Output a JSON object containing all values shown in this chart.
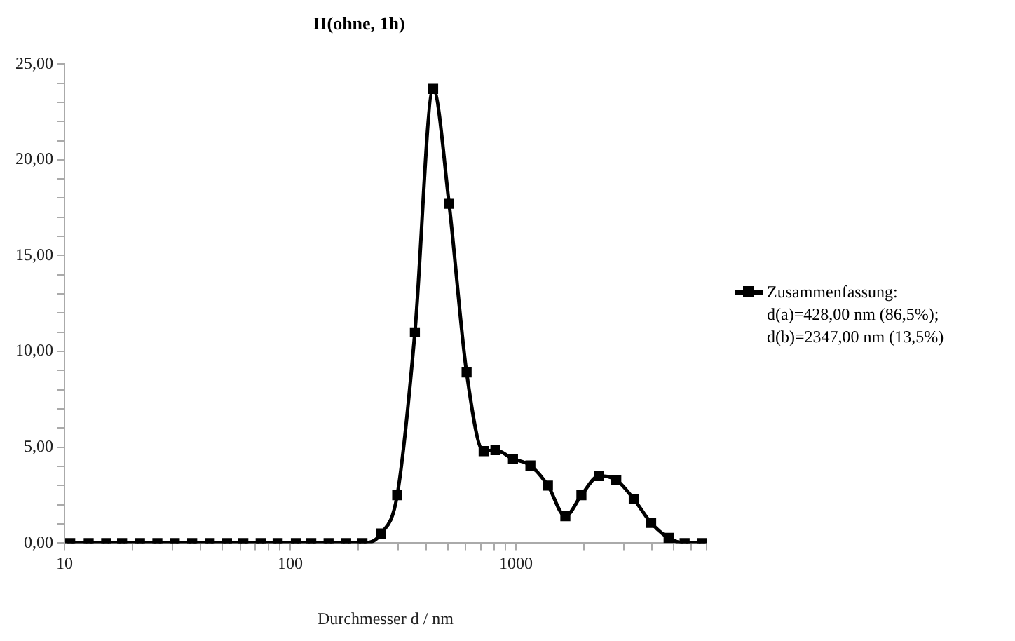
{
  "chart_data": {
    "type": "line",
    "title": "II(ohne, 1h)",
    "xlabel": "Durchmesser d / nm",
    "log": "x",
    "legend": "right",
    "marker": "square",
    "line_style": "solid",
    "grid": false,
    "x": [
      10.6,
      12.8,
      15.3,
      18,
      21.6,
      25.8,
      30.8,
      36.8,
      44,
      52.5,
      62,
      74,
      88,
      106,
      124,
      148,
      177,
      209,
      253,
      298,
      357,
      430,
      506,
      605,
      720,
      812,
      971,
      1160,
      1387,
      1657,
      1952,
      2333,
      2786,
      3330,
      3977,
      4752,
      5596,
      6688
    ],
    "series": [
      {
        "name": "Zusammenfassung:\nd(a)=428,00 nm (86,5%);\nd(b)=2347,00 nm (13,5%)",
        "color": "#000000",
        "values": [
          0,
          0,
          0,
          0,
          0,
          0,
          0,
          0,
          0,
          0,
          0,
          0,
          0,
          0,
          0,
          0,
          0,
          0,
          0.5,
          2.5,
          11,
          23.7,
          17.7,
          8.9,
          4.8,
          4.85,
          4.4,
          4.05,
          3.0,
          1.4,
          2.5,
          3.5,
          3.3,
          2.3,
          1.05,
          0.27,
          0,
          0
        ]
      }
    ],
    "xlim": [
      10,
      7000
    ],
    "xticks": [
      10,
      {
        "value": 20,
        "label": null
      },
      {
        "value": 30,
        "label": null
      },
      {
        "value": 40,
        "label": null
      },
      {
        "value": 50,
        "label": null
      },
      {
        "value": 60,
        "label": null
      },
      {
        "value": 70,
        "label": null
      },
      {
        "value": 80,
        "label": null
      },
      {
        "value": 90,
        "label": null
      },
      100,
      {
        "value": 200,
        "label": null
      },
      {
        "value": 300,
        "label": null
      },
      {
        "value": 400,
        "label": null
      },
      {
        "value": 500,
        "label": null
      },
      {
        "value": 600,
        "label": null
      },
      {
        "value": 700,
        "label": null
      },
      {
        "value": 800,
        "label": null
      },
      {
        "value": 900,
        "label": null
      },
      1000,
      {
        "value": 2000,
        "label": null
      },
      {
        "value": 3000,
        "label": null
      },
      {
        "value": 4000,
        "label": null
      },
      {
        "value": 5000,
        "label": null
      },
      {
        "value": 6000,
        "label": null
      },
      {
        "value": 7000,
        "label": null
      }
    ],
    "ylim": [
      0,
      25
    ],
    "yticks": [
      {
        "value": 0,
        "label": "0,00"
      },
      {
        "value": 1,
        "label": null
      },
      {
        "value": 2,
        "label": null
      },
      {
        "value": 3,
        "label": null
      },
      {
        "value": 4,
        "label": null
      },
      {
        "value": 5,
        "label": "5,00"
      },
      {
        "value": 6,
        "label": null
      },
      {
        "value": 7,
        "label": null
      },
      {
        "value": 8,
        "label": null
      },
      {
        "value": 9,
        "label": null
      },
      {
        "value": 10,
        "label": "10,00"
      },
      {
        "value": 11,
        "label": null
      },
      {
        "value": 12,
        "label": null
      },
      {
        "value": 13,
        "label": null
      },
      {
        "value": 14,
        "label": null
      },
      {
        "value": 15,
        "label": "15,00"
      },
      {
        "value": 16,
        "label": null
      },
      {
        "value": 17,
        "label": null
      },
      {
        "value": 18,
        "label": null
      },
      {
        "value": 19,
        "label": null
      },
      {
        "value": 20,
        "label": "20,00"
      },
      {
        "value": 21,
        "label": null
      },
      {
        "value": 22,
        "label": null
      },
      {
        "value": 23,
        "label": null
      },
      {
        "value": 24,
        "label": null
      },
      {
        "value": 25,
        "label": "25,00"
      }
    ]
  }
}
